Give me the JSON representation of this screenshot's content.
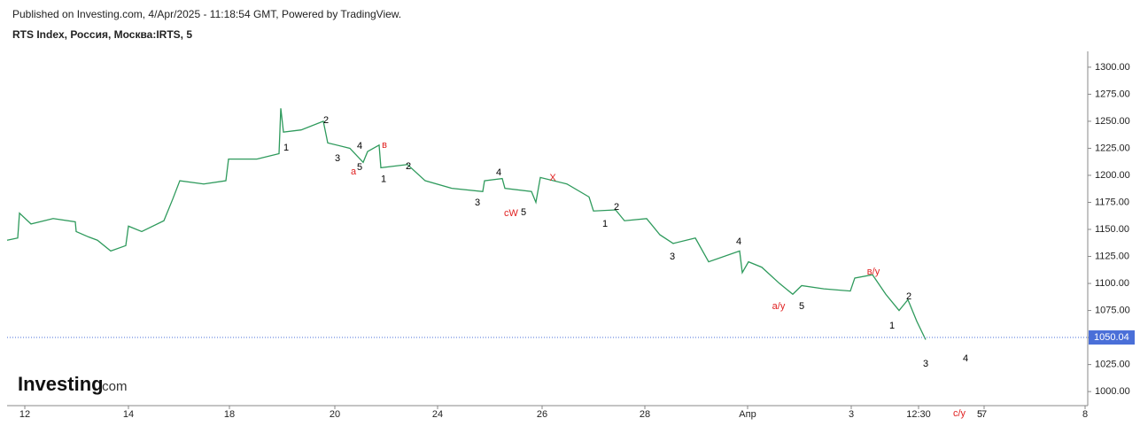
{
  "header": {
    "published": "Published on Investing.com, 4/Apr/2025 - 11:18:54 GMT, Powered by TradingView.",
    "symbol": "RTS Index, Россия, Москва:IRTS, 5",
    "logo": "Investing",
    "logo_suffix": ".com"
  },
  "chart_data": {
    "type": "line",
    "x": [
      0,
      12,
      14,
      27,
      52,
      77,
      78,
      92,
      102,
      117,
      134,
      137,
      152,
      177,
      187,
      195,
      222,
      247,
      250,
      282,
      307,
      309,
      312,
      332,
      357,
      362,
      387,
      402,
      407,
      420,
      422,
      452,
      472,
      502,
      537,
      539,
      559,
      562,
      592,
      597,
      602,
      632,
      657,
      662,
      687,
      697,
      722,
      737,
      752,
      777,
      792,
      827,
      830,
      837,
      852,
      872,
      887,
      897,
      922,
      952,
      957,
      977,
      992,
      1007,
      1017,
      1027,
      1037
    ],
    "series": [
      {
        "name": "RTS Index",
        "color": "#2e9a5c",
        "values": [
          1140,
          1142,
          1165,
          1155,
          1160,
          1157,
          1148,
          1143,
          1140,
          1130,
          1135,
          1153,
          1148,
          1158,
          1178,
          1195,
          1192,
          1195,
          1215,
          1215,
          1220,
          1262,
          1240,
          1242,
          1250,
          1230,
          1225,
          1212,
          1222,
          1228,
          1207,
          1210,
          1195,
          1188,
          1185,
          1195,
          1197,
          1188,
          1185,
          1175,
          1198,
          1192,
          1180,
          1167,
          1168,
          1158,
          1160,
          1145,
          1137,
          1142,
          1120,
          1130,
          1110,
          1120,
          1115,
          1100,
          1090,
          1098,
          1095,
          1093,
          1105,
          1108,
          1090,
          1075,
          1085,
          1065,
          1048
        ]
      }
    ],
    "xlim": [
      0,
      1220
    ],
    "xticks": [
      {
        "value": 20,
        "label": "12"
      },
      {
        "value": 137,
        "label": "14"
      },
      {
        "value": 251,
        "label": "18"
      },
      {
        "value": 370,
        "label": "20"
      },
      {
        "value": 486,
        "label": "24"
      },
      {
        "value": 604,
        "label": "26"
      },
      {
        "value": 720,
        "label": "28"
      },
      {
        "value": 836,
        "label": "Апр"
      },
      {
        "value": 953,
        "label": "3"
      },
      {
        "value": 1029,
        "label": "12:30"
      },
      {
        "value": 1103,
        "label": "7"
      },
      {
        "value": 1217,
        "label": "8"
      }
    ],
    "ylim": [
      987,
      1313
    ],
    "yticks": [
      {
        "value": 1000,
        "label": "1000.00"
      },
      {
        "value": 1025,
        "label": "1025.00"
      },
      {
        "value": 1050,
        "label": "1050.00"
      },
      {
        "value": 1075,
        "label": "1075.00"
      },
      {
        "value": 1100,
        "label": "1100.00"
      },
      {
        "value": 1125,
        "label": "1125.00"
      },
      {
        "value": 1150,
        "label": "1150.00"
      },
      {
        "value": 1175,
        "label": "1175.00"
      },
      {
        "value": 1200,
        "label": "1200.00"
      },
      {
        "value": 1225,
        "label": "1225.00"
      },
      {
        "value": 1250,
        "label": "1250.00"
      },
      {
        "value": 1275,
        "label": "1275.00"
      },
      {
        "value": 1300,
        "label": "1300.00"
      }
    ],
    "last_price": {
      "value": 1050.04,
      "label": "1050.04",
      "color": "#4a6fd8"
    },
    "annotations": [
      {
        "text": "1",
        "x": 315,
        "y": 1225.4,
        "color": "#000000"
      },
      {
        "text": "2",
        "x": 360,
        "y": 1250.8,
        "color": "#000000"
      },
      {
        "text": "3",
        "x": 373,
        "y": 1215.6,
        "color": "#000000"
      },
      {
        "text": "4",
        "x": 398,
        "y": 1227,
        "color": "#000000"
      },
      {
        "text": "5",
        "x": 398,
        "y": 1207.4,
        "color": "#000000"
      },
      {
        "text": "а",
        "x": 391,
        "y": 1203.3,
        "color": "#e02020"
      },
      {
        "text": "в",
        "x": 426,
        "y": 1227.9,
        "color": "#e02020"
      },
      {
        "text": "1",
        "x": 425,
        "y": 1196,
        "color": "#000000"
      },
      {
        "text": "2",
        "x": 453,
        "y": 1208.2,
        "color": "#000000"
      },
      {
        "text": "4",
        "x": 555,
        "y": 1202.5,
        "color": "#000000"
      },
      {
        "text": "3",
        "x": 531,
        "y": 1174.6,
        "color": "#000000"
      },
      {
        "text": "cW",
        "x": 569,
        "y": 1164.8,
        "color": "#e02020"
      },
      {
        "text": "5",
        "x": 583,
        "y": 1165.6,
        "color": "#000000"
      },
      {
        "text": "X",
        "x": 616,
        "y": 1197.5,
        "color": "#e02020"
      },
      {
        "text": "2",
        "x": 688,
        "y": 1170.5,
        "color": "#000000"
      },
      {
        "text": "1",
        "x": 675,
        "y": 1155,
        "color": "#000000"
      },
      {
        "text": "3",
        "x": 751,
        "y": 1124.6,
        "color": "#000000"
      },
      {
        "text": "4",
        "x": 826,
        "y": 1138.5,
        "color": "#000000"
      },
      {
        "text": "a/y",
        "x": 871,
        "y": 1078.7,
        "color": "#e02020"
      },
      {
        "text": "5",
        "x": 897,
        "y": 1078.7,
        "color": "#000000"
      },
      {
        "text": "в/у",
        "x": 978,
        "y": 1110.7,
        "color": "#e02020"
      },
      {
        "text": "2",
        "x": 1018,
        "y": 1087.7,
        "color": "#000000"
      },
      {
        "text": "1",
        "x": 999,
        "y": 1060.7,
        "color": "#000000"
      },
      {
        "text": "3",
        "x": 1037,
        "y": 1025.4,
        "color": "#000000"
      },
      {
        "text": "4",
        "x": 1082,
        "y": 1030.3,
        "color": "#000000"
      },
      {
        "text": "c/y",
        "x": 1075,
        "y": 979.5,
        "color": "#e02020"
      },
      {
        "text": "5",
        "x": 1098,
        "y": 978.7,
        "color": "#000000"
      }
    ]
  }
}
